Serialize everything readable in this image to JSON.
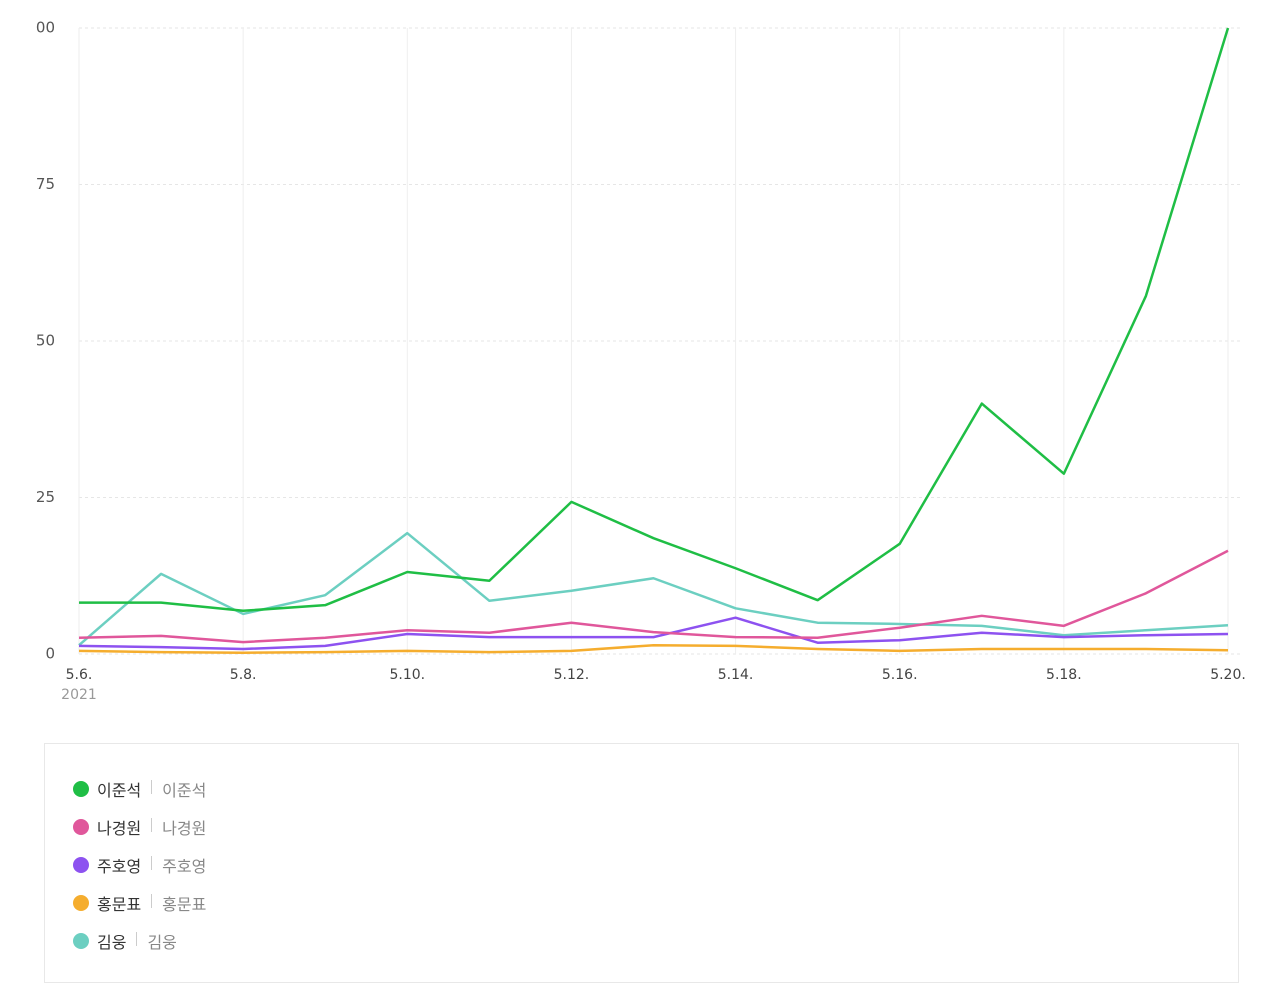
{
  "chart_data": {
    "type": "line",
    "categories": [
      "5.6.",
      null,
      "5.8.",
      null,
      "5.10.",
      null,
      "5.12.",
      null,
      "5.14.",
      null,
      "5.16.",
      null,
      "5.18.",
      null,
      "5.20."
    ],
    "year_label": "2021",
    "ylim": [
      0,
      100
    ],
    "yticks": [
      0,
      25,
      50,
      75,
      {
        "value": 100,
        "label": "00"
      }
    ],
    "grid": true,
    "series": [
      {
        "name": "이준석",
        "color": "#1fbe45",
        "values": [
          8.2,
          8.2,
          6.9,
          7.8,
          13.1,
          11.7,
          24.3,
          18.5,
          13.7,
          8.6,
          17.6,
          40,
          28.8,
          57.2,
          100
        ]
      },
      {
        "name": "나경원",
        "color": "#e0579b",
        "values": [
          2.6,
          2.9,
          1.9,
          2.6,
          3.8,
          3.4,
          5,
          3.5,
          2.7,
          2.6,
          4.2,
          6.1,
          4.5,
          9.7,
          16.5
        ]
      },
      {
        "name": "주호영",
        "color": "#8d52f0",
        "values": [
          1.3,
          1.1,
          0.8,
          1.3,
          3.2,
          2.7,
          2.7,
          2.7,
          5.8,
          1.8,
          2.2,
          3.4,
          2.7,
          3,
          3.2
        ]
      },
      {
        "name": "홍문표",
        "color": "#f5ad2e",
        "values": [
          0.5,
          0.3,
          0.2,
          0.3,
          0.5,
          0.3,
          0.5,
          1.4,
          1.3,
          0.8,
          0.5,
          0.8,
          0.8,
          0.8,
          0.6
        ]
      },
      {
        "name": "김웅",
        "color": "#6ccfc1",
        "values": [
          1.4,
          12.8,
          6.4,
          9.4,
          19.3,
          8.5,
          10.1,
          12.1,
          7.3,
          5,
          4.8,
          4.5,
          3,
          3.8,
          4.6
        ]
      }
    ]
  }
}
